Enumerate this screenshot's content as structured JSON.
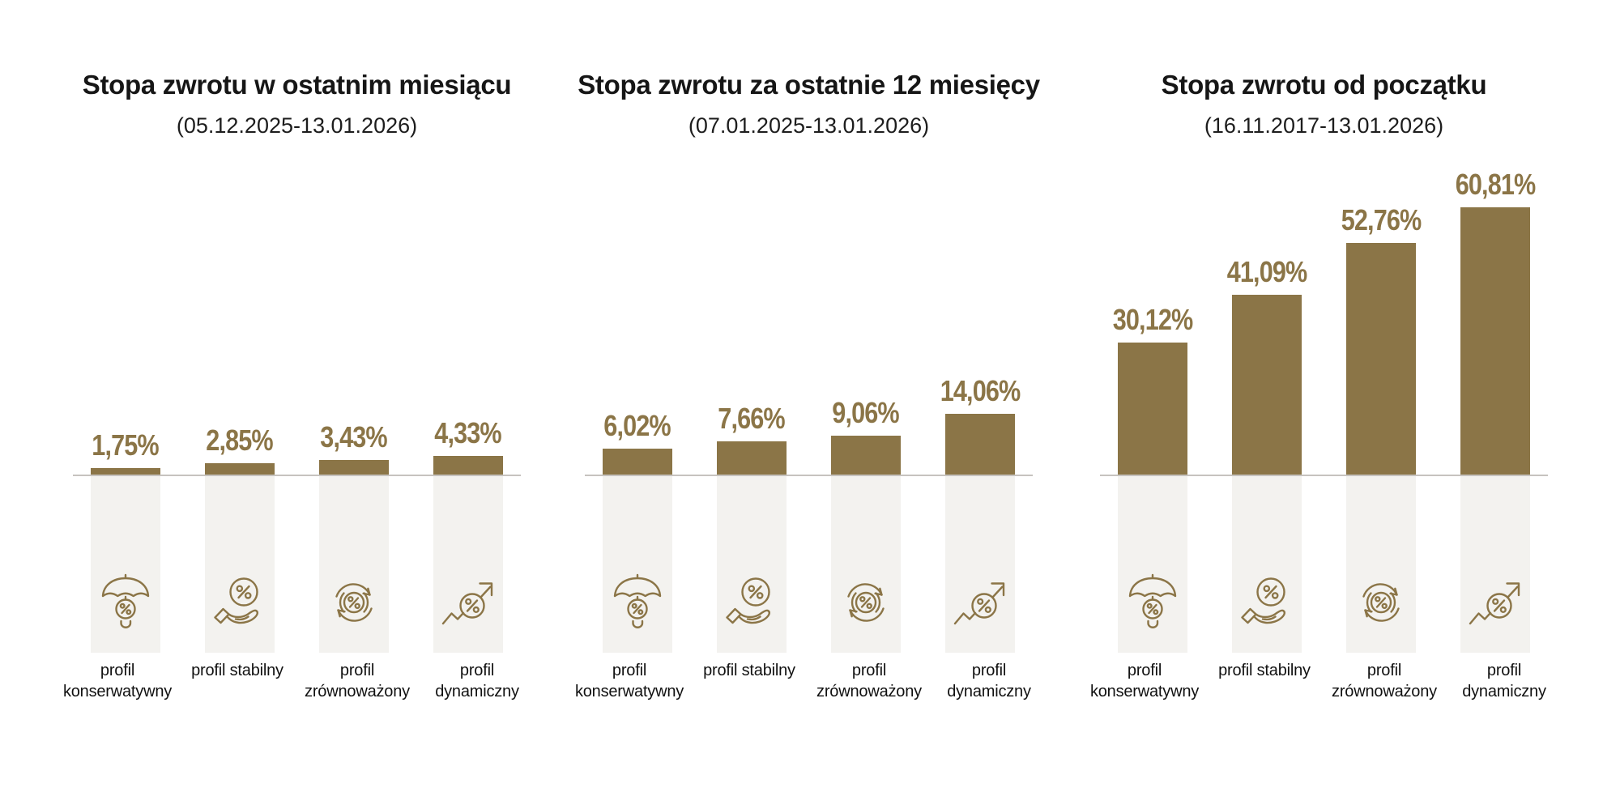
{
  "page": {
    "background": "#ffffff"
  },
  "colors": {
    "bar": "#8b7547",
    "value_label": "#8b7547",
    "icon_stroke": "#8b7547",
    "pillar_background": "#f3f2ef",
    "baseline": "#c6c3bf",
    "title_text": "#161616",
    "category_text": "#111111"
  },
  "profiles": [
    {
      "category": "profil konserwatywny",
      "icon": "umbrella-percent-icon"
    },
    {
      "category": "profil stabilny",
      "icon": "hand-holding-percent-icon"
    },
    {
      "category": "profil zrównoważony",
      "icon": "cycle-arrows-percent-icon"
    },
    {
      "category": "profil dynamiczny",
      "icon": "trend-up-percent-icon"
    }
  ],
  "chart_data": [
    {
      "type": "bar",
      "title": "Stopa zwrotu w ostatnim miesiącu",
      "subtitle": "(05.12.2025-13.01.2026)",
      "categories": [
        "profil konserwatywny",
        "profil stabilny",
        "profil zrównoważony",
        "profil dynamiczny"
      ],
      "values": [
        1.75,
        2.85,
        3.43,
        4.33
      ],
      "value_labels": [
        "1,75%",
        "2,85%",
        "3,43%",
        "4,33%"
      ],
      "bar_color": "#8b7547",
      "y_axis_visible": false,
      "grid": false,
      "legend": "none"
    },
    {
      "type": "bar",
      "title": "Stopa zwrotu za ostatnie 12 miesięcy",
      "subtitle": "(07.01.2025-13.01.2026)",
      "categories": [
        "profil konserwatywny",
        "profil stabilny",
        "profil zrównoważony",
        "profil dynamiczny"
      ],
      "values": [
        6.02,
        7.66,
        9.06,
        14.06
      ],
      "value_labels": [
        "6,02%",
        "7,66%",
        "9,06%",
        "14,06%"
      ],
      "bar_color": "#8b7547",
      "y_axis_visible": false,
      "grid": false,
      "legend": "none"
    },
    {
      "type": "bar",
      "title": "Stopa zwrotu od początku",
      "subtitle": "(16.11.2017-13.01.2026)",
      "categories": [
        "profil konserwatywny",
        "profil stabilny",
        "profil zrównoważony",
        "profil dynamiczny"
      ],
      "values": [
        30.12,
        41.09,
        52.76,
        60.81
      ],
      "value_labels": [
        "30,12%",
        "41,09%",
        "52,76%",
        "60,81%"
      ],
      "bar_color": "#8b7547",
      "y_axis_visible": false,
      "grid": false,
      "legend": "none"
    }
  ]
}
